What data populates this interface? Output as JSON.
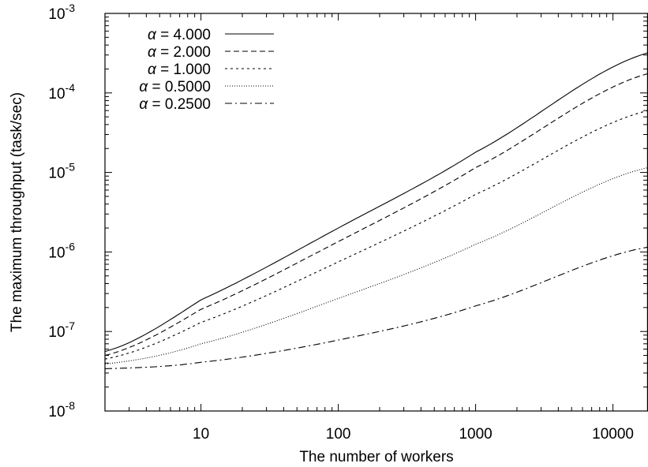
{
  "chart_data": {
    "type": "line",
    "xlabel": "The number of workers",
    "ylabel": "The maximum throughput (task/sec)",
    "x_scale": "log",
    "y_scale": "log",
    "xlim": [
      2,
      18000
    ],
    "ylim": [
      1e-08,
      0.001
    ],
    "x_ticks": [
      {
        "value": 10,
        "label": "10"
      },
      {
        "value": 100,
        "label": "100"
      },
      {
        "value": 1000,
        "label": "1000"
      },
      {
        "value": 10000,
        "label": "10000"
      }
    ],
    "y_ticks": [
      {
        "value": 1e-08,
        "base": "10",
        "exp": "-8"
      },
      {
        "value": 1e-07,
        "base": "10",
        "exp": "-7"
      },
      {
        "value": 1e-06,
        "base": "10",
        "exp": "-6"
      },
      {
        "value": 1e-05,
        "base": "10",
        "exp": "-5"
      },
      {
        "value": 0.0001,
        "base": "10",
        "exp": "-4"
      },
      {
        "value": 0.001,
        "base": "10",
        "exp": "-3"
      }
    ],
    "legend_position": "top-left",
    "grid": false,
    "series": [
      {
        "name": "4.000",
        "dash": "solid",
        "x": [
          2,
          10,
          100,
          1000,
          18000
        ],
        "y": [
          5.6e-08,
          2.5e-07,
          2e-06,
          1.8e-05,
          0.00032
        ]
      },
      {
        "name": "2.000",
        "dash": "dashed",
        "x": [
          2,
          10,
          100,
          1000,
          18000
        ],
        "y": [
          5e-08,
          1.9e-07,
          1.35e-06,
          1.15e-05,
          0.000175
        ]
      },
      {
        "name": "1.000",
        "dash": "dotted",
        "x": [
          2,
          10,
          100,
          1000,
          18000
        ],
        "y": [
          4.5e-08,
          1.3e-07,
          7.5e-07,
          5.3e-06,
          6e-05
        ]
      },
      {
        "name": "0.5000",
        "dash": "fine-dotted",
        "x": [
          2,
          10,
          100,
          1000,
          18000
        ],
        "y": [
          3.9e-08,
          7e-08,
          2.6e-07,
          1.25e-06,
          1.15e-05
        ]
      },
      {
        "name": "0.2500",
        "dash": "dash-dot",
        "x": [
          2,
          10,
          100,
          1000,
          18000
        ],
        "y": [
          3.4e-08,
          4.1e-08,
          7.8e-08,
          2.1e-07,
          1.15e-06
        ]
      }
    ],
    "legend_prefix": "α = "
  }
}
